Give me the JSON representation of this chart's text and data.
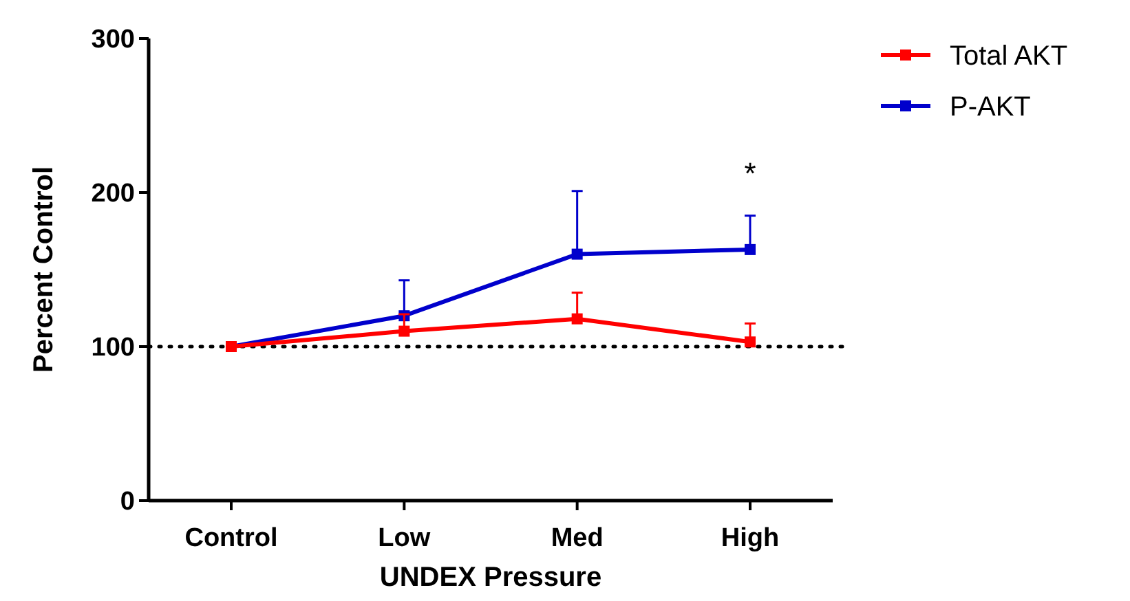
{
  "chart_data": {
    "type": "line",
    "xlabel": "UNDEX Pressure",
    "ylabel": "Percent Control",
    "categories": [
      "Control",
      "Low",
      "Med",
      "High"
    ],
    "series": [
      {
        "name": "Total AKT",
        "color": "#ff0000",
        "values": [
          100,
          110,
          118,
          103
        ],
        "errors": [
          null,
          [
            110,
            121
          ],
          [
            118,
            135
          ],
          [
            103,
            115
          ]
        ]
      },
      {
        "name": "P-AKT",
        "color": "#0000cc",
        "values": [
          100,
          120,
          160,
          163
        ],
        "errors": [
          null,
          [
            120,
            143
          ],
          [
            160,
            201
          ],
          [
            163,
            185
          ]
        ]
      }
    ],
    "ylim": [
      0,
      300
    ],
    "yticks": [
      0,
      100,
      200,
      300
    ],
    "grid": false,
    "legend": "top right",
    "marker": "square",
    "line_style": "solid",
    "ref_lines": [
      {
        "axis": "y",
        "value": 100,
        "line_style": "dotted",
        "color": "#000000"
      }
    ],
    "annotations": [
      "*"
    ]
  }
}
